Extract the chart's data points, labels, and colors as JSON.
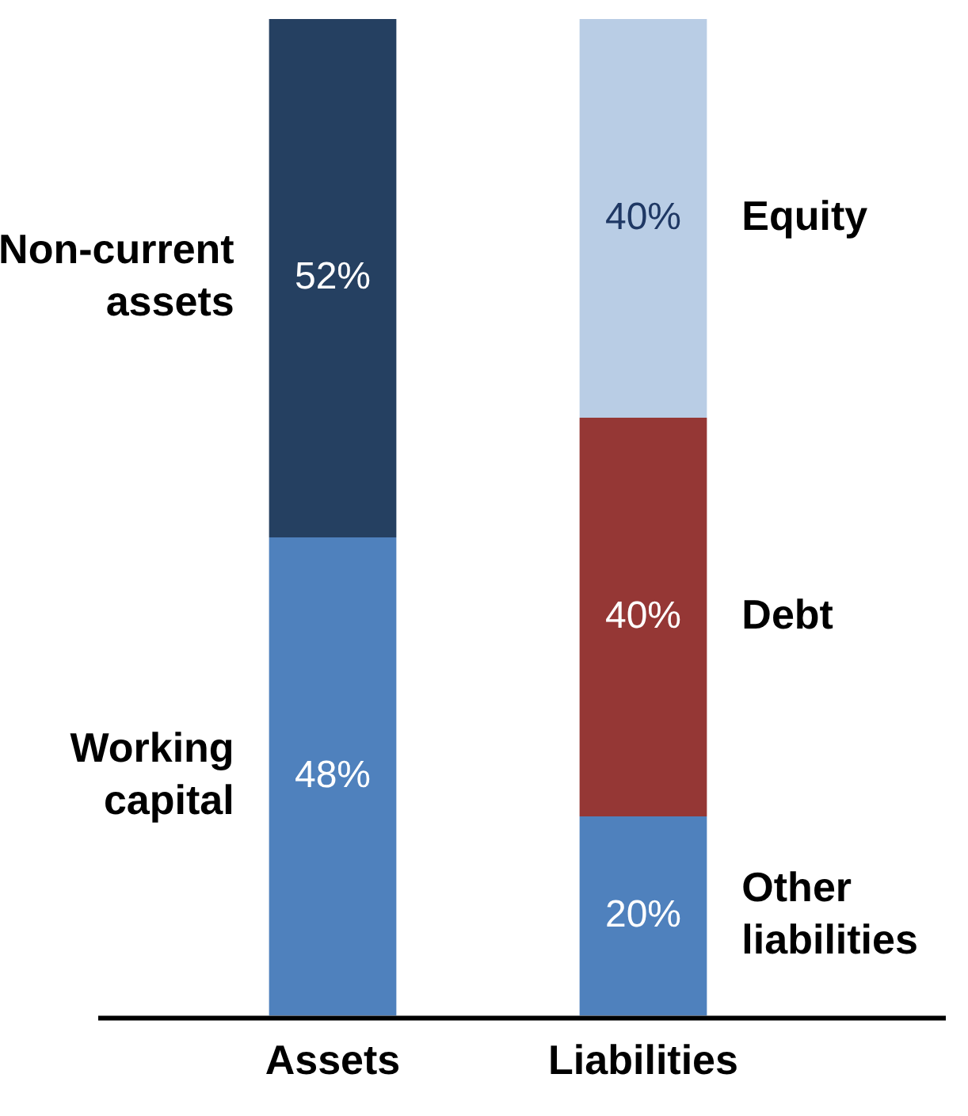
{
  "chart_data": {
    "type": "bar",
    "stacked": true,
    "tick_labels": "x",
    "grid": false,
    "legend": false,
    "categories": [
      "Assets",
      "Liabilities"
    ],
    "series": [
      {
        "name": "Working capital",
        "color": "#4f81bd",
        "values": [
          48,
          null
        ],
        "value_labels": [
          "48%",
          null
        ]
      },
      {
        "name": "Non-current assets",
        "color": "#254061",
        "values": [
          52,
          null
        ],
        "value_labels": [
          "52%",
          null
        ]
      },
      {
        "name": "Other liabilities",
        "color": "#4f81bd",
        "values": [
          null,
          20
        ],
        "value_labels": [
          null,
          "20%"
        ]
      },
      {
        "name": "Debt",
        "color": "#953735",
        "values": [
          null,
          40
        ],
        "value_labels": [
          null,
          "40%"
        ]
      },
      {
        "name": "Equity",
        "color": "#b9cde5",
        "values": [
          null,
          40
        ],
        "value_labels": [
          null,
          "40%"
        ]
      }
    ]
  }
}
